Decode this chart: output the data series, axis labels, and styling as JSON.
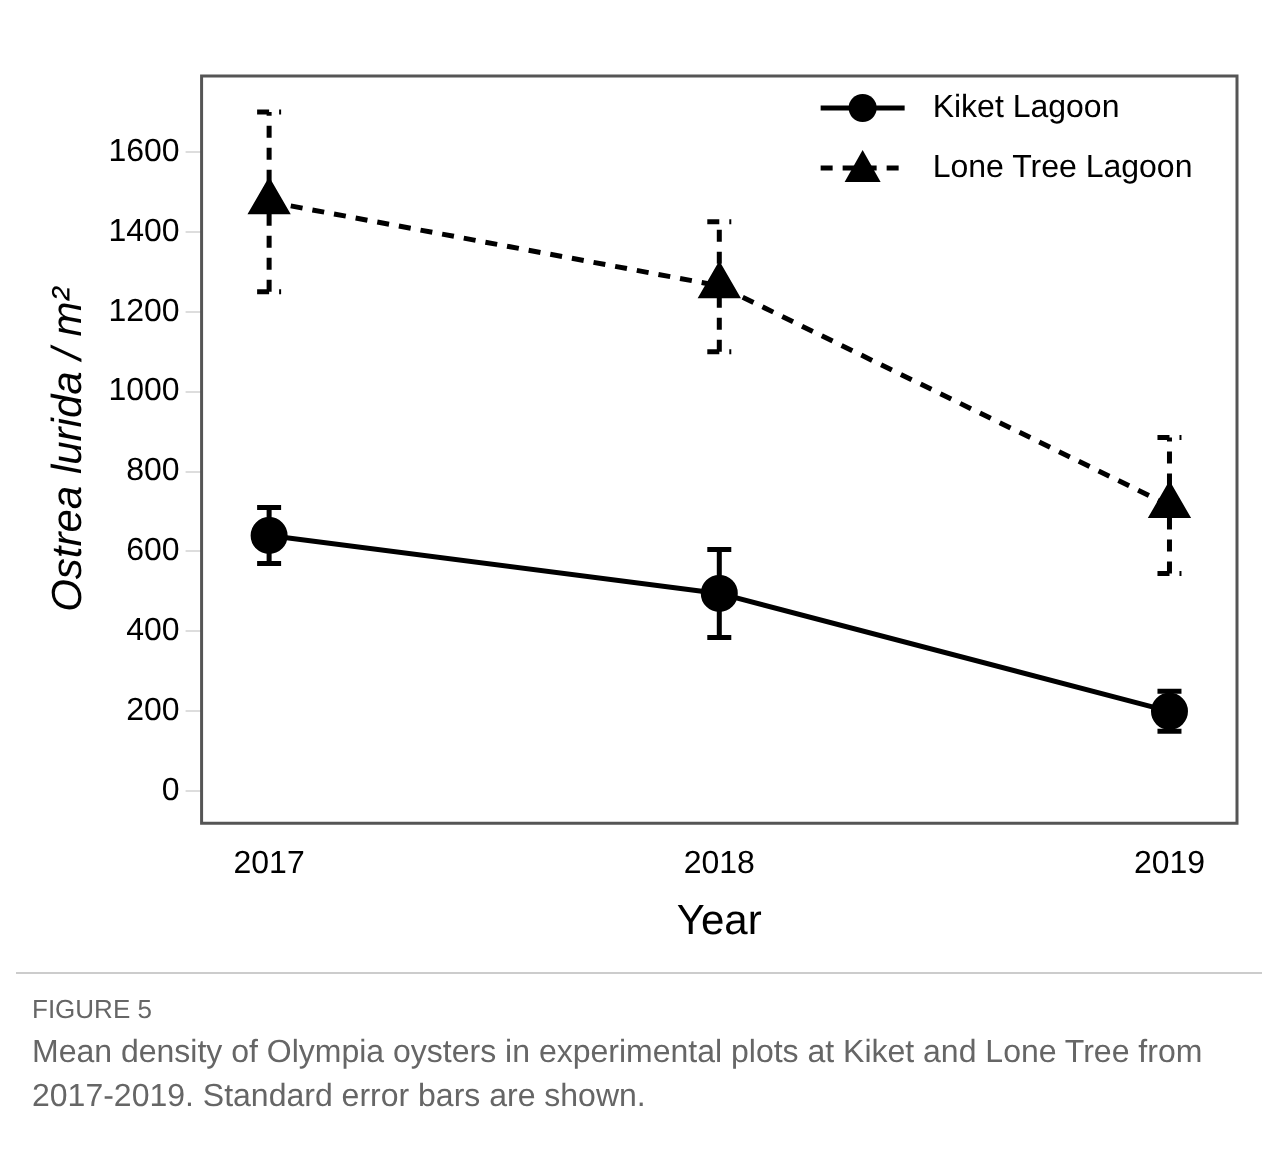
{
  "chart_data": {
    "type": "line",
    "xlabel": "Year",
    "ylabel": "Ostrea lurida / m²",
    "x": [
      2017,
      2018,
      2019
    ],
    "xlim": [
      2016.85,
      2019.15
    ],
    "xticks": [
      2017,
      2018,
      2019
    ],
    "ylim": [
      -80,
      1790
    ],
    "yticks": [
      0,
      200,
      400,
      600,
      800,
      1000,
      1200,
      1400,
      1600
    ],
    "grid": false,
    "legend": "top right",
    "series": [
      {
        "name": "Kiket Lagoon",
        "color": "#000000",
        "marker": "circle",
        "line_style": "solid",
        "values": [
          640,
          495,
          200
        ],
        "errors": [
          [
            570,
            710
          ],
          [
            385,
            605
          ],
          [
            150,
            250
          ]
        ]
      },
      {
        "name": "Lone Tree Lagoon",
        "color": "#000000",
        "marker": "triangle",
        "line_style": "dashed",
        "values": [
          1475,
          1265,
          715
        ],
        "errors": [
          [
            1250,
            1700
          ],
          [
            1100,
            1425
          ],
          [
            545,
            885
          ]
        ]
      }
    ],
    "annotations": [
      "FIGURE 5",
      "Mean density of Olympia oysters in experimental plots at Kiket and Lone Tree from 2017-2019. Standard error bars are shown."
    ]
  }
}
